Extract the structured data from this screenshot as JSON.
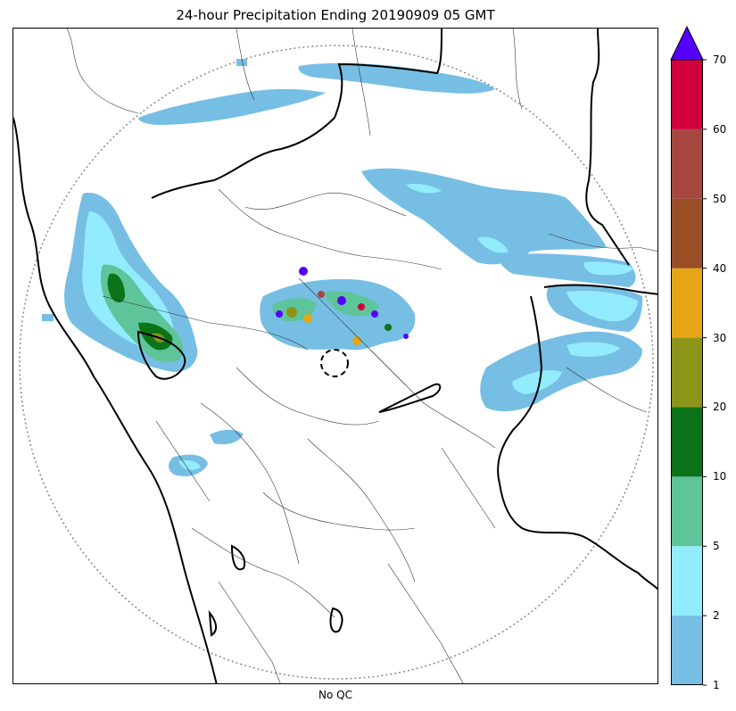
{
  "title": "24-hour Precipitation Ending 20190909 05 GMT",
  "subtitle": "No QC",
  "colorbar": {
    "levels": [
      {
        "from": 1,
        "to": 2,
        "color": "#76bee4"
      },
      {
        "from": 2,
        "to": 5,
        "color": "#93ecfd"
      },
      {
        "from": 5,
        "to": 10,
        "color": "#5ec49a"
      },
      {
        "from": 10,
        "to": 20,
        "color": "#0c7318"
      },
      {
        "from": 20,
        "to": 30,
        "color": "#8c9517"
      },
      {
        "from": 30,
        "to": 40,
        "color": "#e4a616"
      },
      {
        "from": 40,
        "to": 50,
        "color": "#9b4d26"
      },
      {
        "from": 50,
        "to": 60,
        "color": "#a6473f"
      },
      {
        "from": 60,
        "to": 70,
        "color": "#d3003f"
      }
    ],
    "extend_max_color": "#5500ff",
    "tick_labels": [
      "1",
      "2",
      "5",
      "10",
      "20",
      "30",
      "40",
      "50",
      "60",
      "70"
    ]
  }
}
